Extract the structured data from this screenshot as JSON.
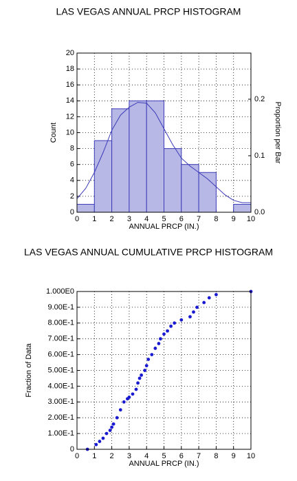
{
  "chart_data": [
    {
      "type": "histogram",
      "title": "LAS VEGAS ANNUAL PRCP HISTOGRAM",
      "xlabel": "ANNUAL PRCP (IN.)",
      "ylabel": "Count",
      "y2label": "Proportion per Bar",
      "bins": [
        0,
        1,
        2,
        3,
        4,
        5,
        6,
        7,
        8,
        9,
        10
      ],
      "values": [
        1,
        9,
        13,
        14,
        14,
        8,
        6,
        5,
        0,
        1
      ],
      "color": "#b8b8e6",
      "edge_color": "#3a3ab8",
      "curve": {
        "x": [
          0,
          0.5,
          1,
          1.5,
          2,
          2.5,
          3,
          3.5,
          4,
          4.5,
          5,
          5.5,
          6,
          6.5,
          7,
          7.5,
          8,
          8.5,
          9,
          9.5,
          10
        ],
        "values": [
          1.7,
          3,
          5,
          7.5,
          10.3,
          12.2,
          13.2,
          13.8,
          13.7,
          12.5,
          10.5,
          8.5,
          6.8,
          5.8,
          5,
          4.2,
          3.2,
          2.2,
          1.5,
          1.2,
          1.2
        ],
        "color": "#3a3ab8"
      },
      "xlim": [
        0,
        10
      ],
      "xticks": [
        0,
        1,
        2,
        3,
        4,
        5,
        6,
        7,
        8,
        9,
        10
      ],
      "ylim": [
        0,
        20
      ],
      "yticks": [
        0,
        2,
        4,
        6,
        8,
        10,
        12,
        14,
        16,
        18,
        20
      ],
      "y2lim": [
        0,
        0.2817
      ],
      "y2ticks": [
        {
          "value": 0,
          "label": "0.0"
        },
        0.1,
        0.2
      ],
      "grid": true
    },
    {
      "type": "scatter",
      "title": "LAS VEGAS ANNUAL CUMULATIVE PRCP HISTOGRAM",
      "xlabel": "ANNUAL PRCP (IN.)",
      "ylabel": "Fraction of Data",
      "x": [
        0.6,
        1.1,
        1.3,
        1.5,
        1.7,
        1.9,
        2.0,
        2.1,
        2.3,
        2.5,
        2.7,
        2.9,
        3.0,
        3.2,
        3.4,
        3.5,
        3.6,
        3.7,
        3.9,
        4.0,
        4.1,
        4.3,
        4.5,
        4.7,
        4.8,
        5.0,
        5.2,
        5.4,
        5.6,
        6.0,
        6.5,
        6.7,
        6.9,
        7.3,
        7.6,
        8.0,
        10.0
      ],
      "values": [
        0.0,
        0.03,
        0.05,
        0.07,
        0.1,
        0.12,
        0.14,
        0.16,
        0.2,
        0.25,
        0.3,
        0.32,
        0.33,
        0.35,
        0.38,
        0.42,
        0.45,
        0.47,
        0.5,
        0.53,
        0.57,
        0.6,
        0.64,
        0.67,
        0.7,
        0.73,
        0.75,
        0.78,
        0.8,
        0.82,
        0.84,
        0.87,
        0.9,
        0.93,
        0.96,
        0.98,
        1.0
      ],
      "color": "#1a1ad0",
      "xlim": [
        0,
        10
      ],
      "xticks": [
        0,
        1,
        2,
        3,
        4,
        5,
        6,
        7,
        8,
        9,
        10
      ],
      "ylim": [
        0,
        1
      ],
      "yticks": [
        0,
        {
          "value": 0.1,
          "label": "1.00E-1"
        },
        {
          "value": 0.2,
          "label": "2.00E-1"
        },
        {
          "value": 0.3,
          "label": "3.00E-1"
        },
        {
          "value": 0.4,
          "label": "4.00E-1"
        },
        {
          "value": 0.5,
          "label": "5.00E-1"
        },
        {
          "value": 0.6,
          "label": "6.00E-1"
        },
        {
          "value": 0.7,
          "label": "7.00E-1"
        },
        {
          "value": 0.8,
          "label": "8.00E-1"
        },
        {
          "value": 0.9,
          "label": "9.00E-1"
        },
        {
          "value": 1,
          "label": "1.000E0"
        }
      ],
      "grid": true
    }
  ]
}
